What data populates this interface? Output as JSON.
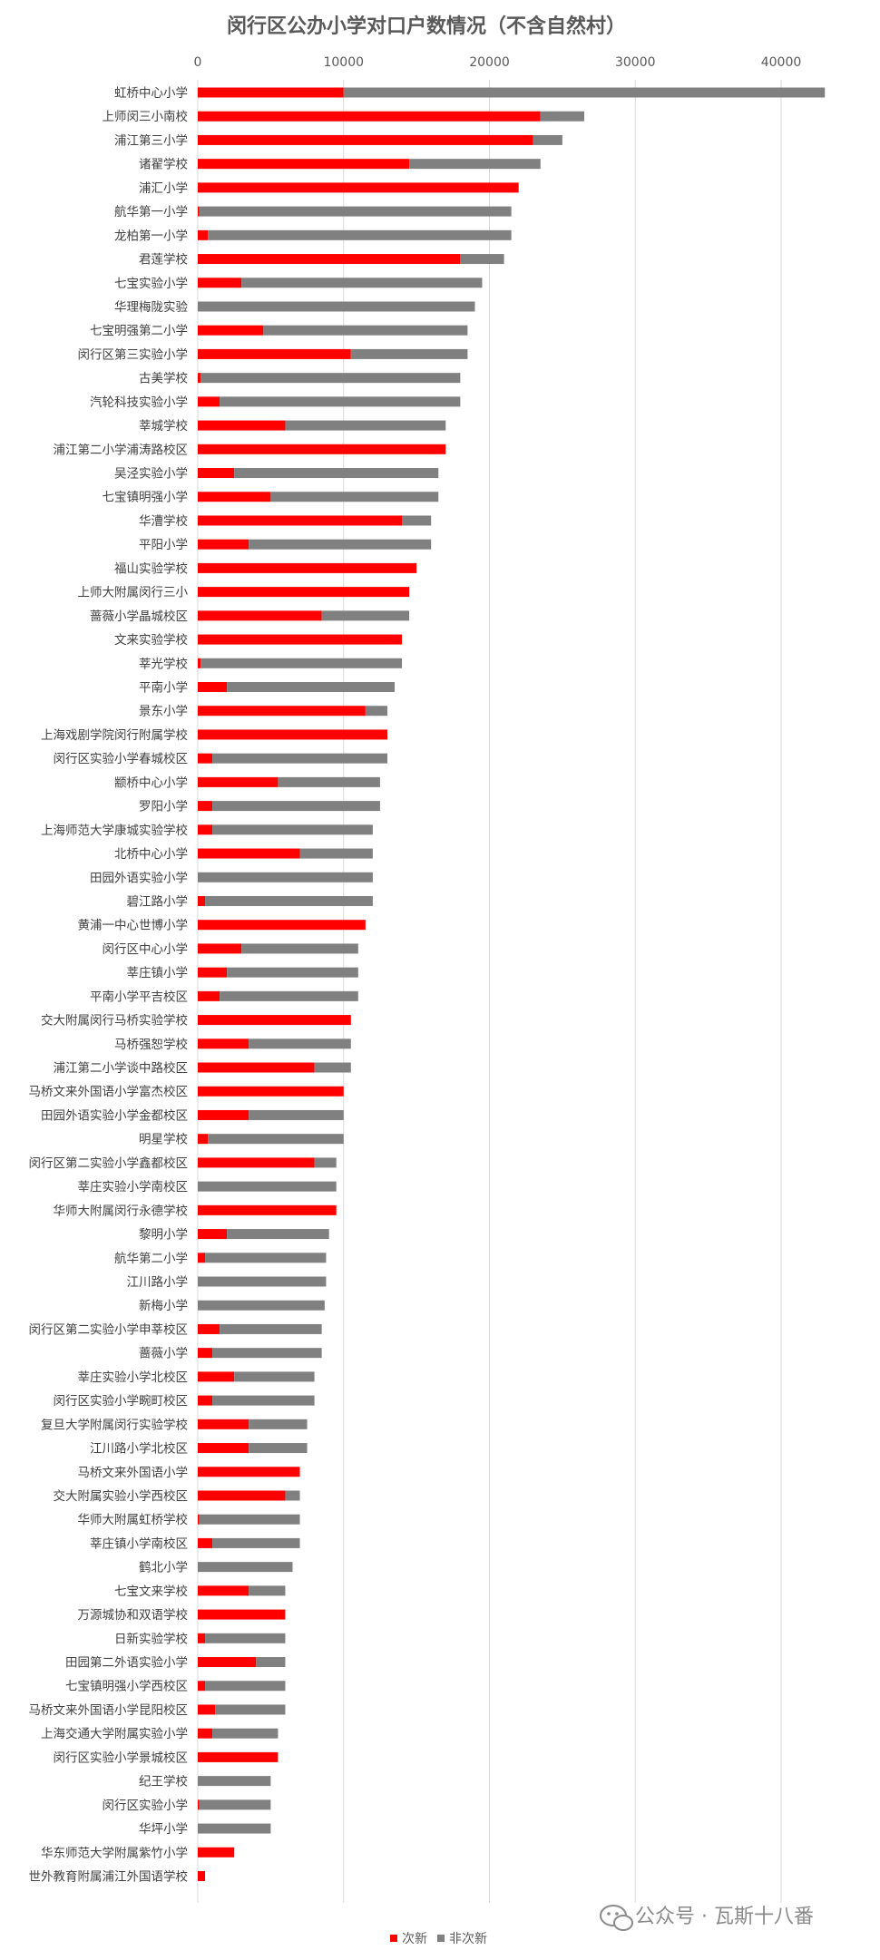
{
  "chart_data": {
    "type": "bar",
    "orientation": "horizontal",
    "stacked": true,
    "title": "闵行区公办小学对口户数情况（不含自然村）",
    "xlim": [
      0,
      43000
    ],
    "xticks": [
      0,
      10000,
      20000,
      30000,
      40000
    ],
    "grid": "vertical",
    "legend_position": "bottom",
    "colors": {
      "次新": "#ff0000",
      "非次新": "#808080"
    },
    "categories": [
      "虹桥中心小学",
      "上师闵三小南校",
      "浦江第三小学",
      "诸翟学校",
      "浦汇小学",
      "航华第一小学",
      "龙柏第一小学",
      "君莲学校",
      "七宝实验小学",
      "华理梅陇实验",
      "七宝明强第二小学",
      "闵行区第三实验小学",
      "古美学校",
      "汽轮科技实验小学",
      "莘城学校",
      "浦江第二小学浦涛路校区",
      "吴泾实验小学",
      "七宝镇明强小学",
      "华漕学校",
      "平阳小学",
      "福山实验学校",
      "上师大附属闵行三小",
      "蔷薇小学晶城校区",
      "文来实验学校",
      "莘光学校",
      "平南小学",
      "景东小学",
      "上海戏剧学院闵行附属学校",
      "闵行区实验小学春城校区",
      "颛桥中心小学",
      "罗阳小学",
      "上海师范大学康城实验学校",
      "北桥中心小学",
      "田园外语实验小学",
      "碧江路小学",
      "黄浦一中心世博小学",
      "闵行区中心小学",
      "莘庄镇小学",
      "平南小学平吉校区",
      "交大附属闵行马桥实验学校",
      "马桥强恕学校",
      "浦江第二小学谈中路校区",
      "马桥文来外国语小学富杰校区",
      "田园外语实验小学金都校区",
      "明星学校",
      "闵行区第二实验小学鑫都校区",
      "莘庄实验小学南校区",
      "华师大附属闵行永德学校",
      "黎明小学",
      "航华第二小学",
      "江川路小学",
      "新梅小学",
      "闵行区第二实验小学申莘校区",
      "蔷薇小学",
      "莘庄实验小学北校区",
      "闵行区实验小学畹町校区",
      "复旦大学附属闵行实验学校",
      "江川路小学北校区",
      "马桥文来外国语小学",
      "交大附属实验小学西校区",
      "华师大附属虹桥学校",
      "莘庄镇小学南校区",
      "鹤北小学",
      "七宝文来学校",
      "万源城协和双语学校",
      "日新实验学校",
      "田园第二外语实验小学",
      "七宝镇明强小学西校区",
      "马桥文来外国语小学昆阳校区",
      "上海交通大学附属实验小学",
      "闵行区实验小学景城校区",
      "纪王学校",
      "闵行区实验小学",
      "华坪小学",
      "华东师范大学附属紫竹小学",
      "世外教育附属浦江外国语学校"
    ],
    "series": [
      {
        "name": "次新",
        "values": [
          10000,
          23500,
          23000,
          14500,
          22000,
          100,
          700,
          18000,
          3000,
          0,
          4500,
          10500,
          200,
          1500,
          6000,
          17000,
          2500,
          5000,
          14000,
          3500,
          15000,
          14500,
          8500,
          14000,
          200,
          2000,
          11500,
          13000,
          1000,
          5500,
          1000,
          1000,
          7000,
          0,
          500,
          11500,
          3000,
          2000,
          1500,
          10500,
          3500,
          8000,
          10000,
          3500,
          700,
          8000,
          0,
          9500,
          2000,
          500,
          0,
          0,
          1500,
          1000,
          2500,
          1000,
          3500,
          3500,
          7000,
          6000,
          100,
          1000,
          0,
          3500,
          6000,
          500,
          4000,
          500,
          1200,
          1000,
          5500,
          0,
          100,
          0,
          2500,
          500
        ]
      },
      {
        "name": "非次新",
        "values": [
          33000,
          3000,
          2000,
          9000,
          0,
          21400,
          20800,
          3000,
          16500,
          19000,
          14000,
          8000,
          17800,
          16500,
          11000,
          0,
          14000,
          11500,
          2000,
          12500,
          0,
          0,
          6000,
          0,
          13800,
          11500,
          1500,
          0,
          12000,
          7000,
          11500,
          11000,
          5000,
          12000,
          11500,
          0,
          8000,
          9000,
          9500,
          0,
          7000,
          2500,
          0,
          6500,
          9300,
          1500,
          9500,
          0,
          7000,
          8300,
          8800,
          8700,
          7000,
          7500,
          5500,
          7000,
          4000,
          4000,
          0,
          1000,
          6900,
          6000,
          6500,
          2500,
          0,
          5500,
          2000,
          5500,
          4800,
          4500,
          0,
          5000,
          4900,
          5000,
          0,
          0
        ]
      }
    ]
  },
  "watermark": {
    "text": "公众号 · 瓦斯十八番",
    "icon": "wechat-icon"
  }
}
